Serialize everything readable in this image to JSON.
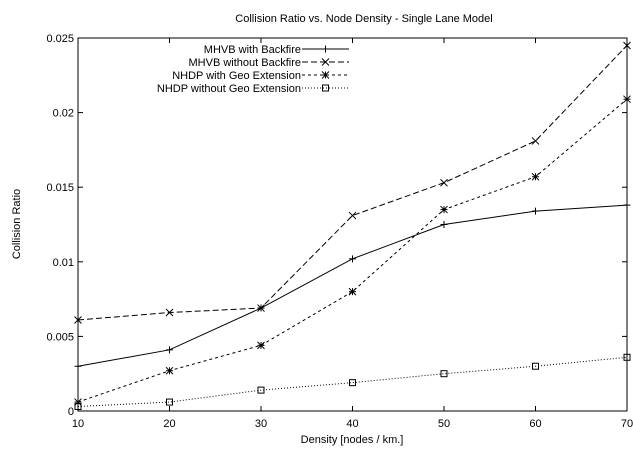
{
  "chart_data": {
    "type": "line",
    "title": "Collision Ratio vs. Node Density - Single Lane Model",
    "xlabel": "Density [nodes / km.]",
    "ylabel": "Collision Ratio",
    "xlim": [
      10,
      70
    ],
    "ylim": [
      0,
      0.025
    ],
    "x_ticks": [
      10,
      20,
      30,
      40,
      50,
      60,
      70
    ],
    "y_ticks": [
      0,
      0.005,
      0.01,
      0.015,
      0.02,
      0.025
    ],
    "y_tick_labels": [
      "0",
      "0.005",
      "0.01",
      "0.015",
      "0.02",
      "0.025"
    ],
    "grid": false,
    "legend_position": "top-left",
    "x": [
      10,
      20,
      30,
      40,
      50,
      60,
      70
    ],
    "series": [
      {
        "name": "MHVB with Backfire",
        "values": [
          0.003,
          0.0041,
          0.0069,
          0.0102,
          0.0125,
          0.0134,
          0.0138
        ],
        "marker": "plus",
        "dash": "solid",
        "color": "#000000"
      },
      {
        "name": "MHVB without Backfire",
        "values": [
          0.0061,
          0.0066,
          0.0069,
          0.0131,
          0.0153,
          0.0181,
          0.0245
        ],
        "marker": "cross",
        "dash": "dashed",
        "color": "#000000"
      },
      {
        "name": "NHDP with Geo Extension",
        "values": [
          0.0006,
          0.0027,
          0.0044,
          0.008,
          0.0135,
          0.0157,
          0.0209
        ],
        "marker": "star",
        "dash": "short-dashed",
        "color": "#000000"
      },
      {
        "name": "NHDP without Geo Extension",
        "values": [
          0.0003,
          0.0006,
          0.0014,
          0.0019,
          0.0025,
          0.003,
          0.0036
        ],
        "marker": "square",
        "dash": "dotted",
        "color": "#000000"
      }
    ]
  }
}
